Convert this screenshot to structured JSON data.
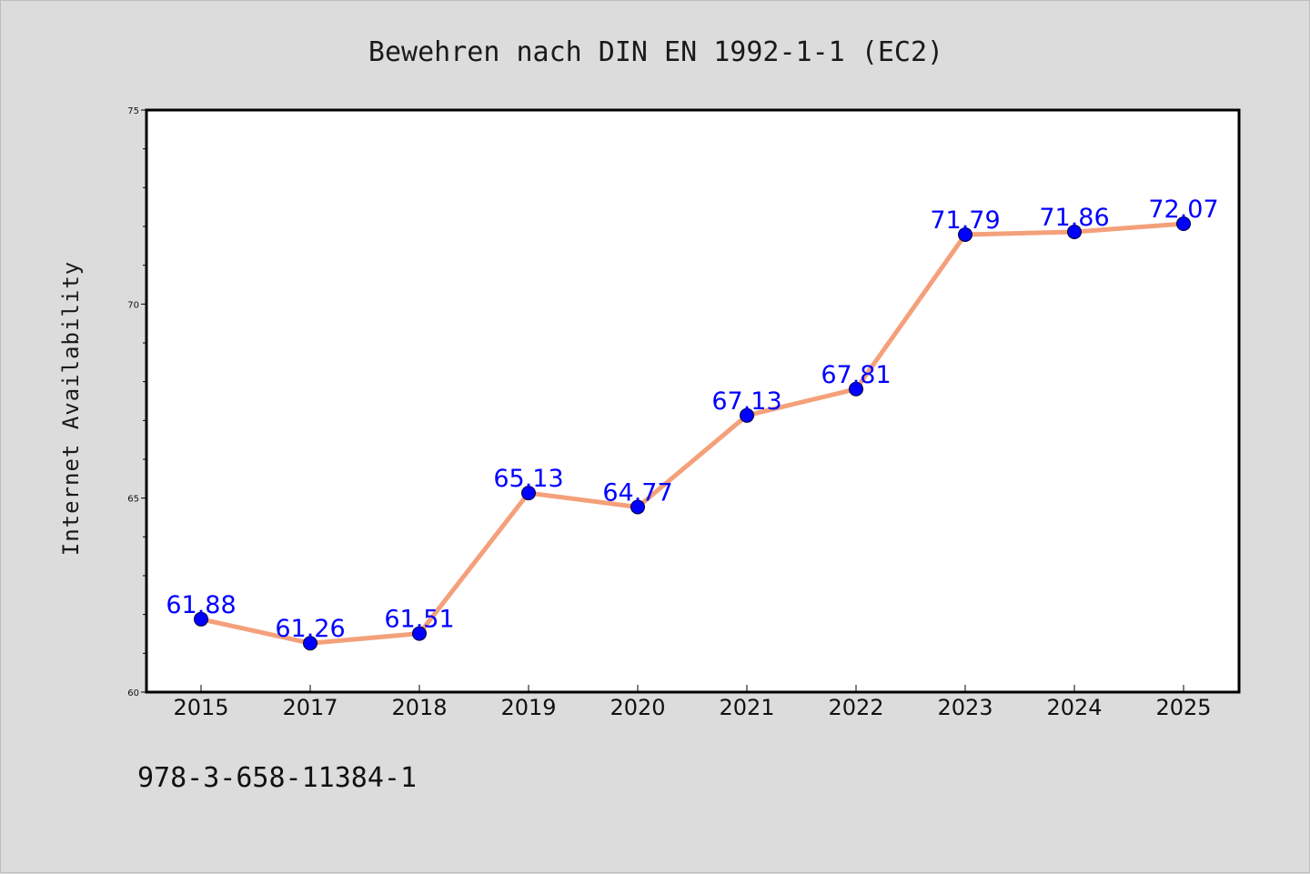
{
  "footer_text": "978-3-658-11384-1",
  "chart_data": {
    "type": "line",
    "title": "Bewehren nach DIN EN 1992-1-1 (EC2)",
    "xlabel": "",
    "ylabel": "Internet Availability",
    "categories": [
      "2015",
      "2017",
      "2018",
      "2019",
      "2020",
      "2021",
      "2022",
      "2023",
      "2024",
      "2025"
    ],
    "series": [
      {
        "values": [
          61.88,
          61.26,
          61.51,
          65.13,
          64.77,
          67.13,
          67.81,
          71.79,
          71.86,
          72.07
        ],
        "labels": [
          "61.88",
          "61.26",
          "61.51",
          "65.13",
          "64.77",
          "67.13",
          "67.81",
          "71.79",
          "71.86",
          "72.07"
        ]
      }
    ],
    "ylim": [
      60,
      75
    ],
    "yticks": [
      "60",
      "65",
      "70",
      "75"
    ],
    "grid": false,
    "colors": {
      "line": "#f4a07a",
      "marker": "#0000ff",
      "label": "#0000ff"
    }
  }
}
